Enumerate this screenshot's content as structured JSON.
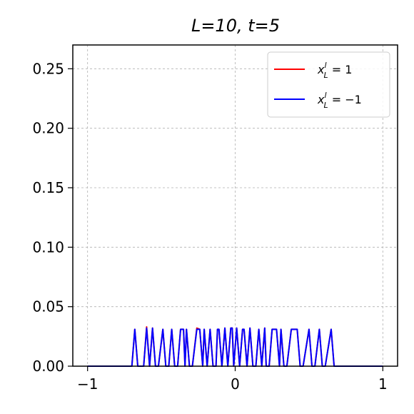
{
  "chart_data": {
    "type": "line",
    "title": "L=10, t=5",
    "xlabel": "",
    "ylabel": "",
    "xlim": [
      -1.1,
      1.1
    ],
    "ylim": [
      0,
      0.27
    ],
    "xticks": [
      -1,
      0,
      1
    ],
    "xtick_labels": [
      "−1",
      "0",
      "1"
    ],
    "yticks": [
      0.0,
      0.05,
      0.1,
      0.15,
      0.2,
      0.25
    ],
    "ytick_labels": [
      "0.00",
      "0.05",
      "0.10",
      "0.15",
      "0.20",
      "0.25"
    ],
    "grid": true,
    "legend_position": "top-right",
    "series": [
      {
        "name": "x_L^l = 1",
        "color": "#ff0000",
        "x": [
          -1.0,
          -0.7,
          -0.68,
          -0.66,
          -0.62,
          -0.6,
          -0.58,
          -0.56,
          -0.54,
          -0.52,
          -0.49,
          -0.47,
          -0.45,
          -0.43,
          -0.41,
          -0.39,
          -0.37,
          -0.35,
          -0.34,
          -0.33,
          -0.31,
          -0.29,
          -0.26,
          -0.24,
          -0.22,
          -0.21,
          -0.19,
          -0.17,
          -0.15,
          -0.13,
          -0.12,
          -0.11,
          -0.09,
          -0.07,
          -0.05,
          -0.03,
          -0.02,
          -0.01,
          0.01,
          0.03,
          0.05,
          0.06,
          0.08,
          0.1,
          0.12,
          0.14,
          0.16,
          0.18,
          0.2,
          0.21,
          0.23,
          0.25,
          0.28,
          0.3,
          0.31,
          0.33,
          0.35,
          0.38,
          0.42,
          0.44,
          0.46,
          0.5,
          0.52,
          0.54,
          0.57,
          0.59,
          0.61,
          0.65,
          0.67,
          0.69,
          1.0
        ],
        "y": [
          0,
          0,
          0.031,
          0,
          0,
          0.033,
          0,
          0.032,
          0,
          0,
          0.031,
          0,
          0,
          0.031,
          0,
          0,
          0.031,
          0.031,
          0,
          0.031,
          0,
          0,
          0.032,
          0.031,
          0,
          0.031,
          0,
          0.031,
          0,
          0,
          0.031,
          0.031,
          0,
          0.032,
          0,
          0.032,
          0.032,
          0,
          0.032,
          0,
          0.031,
          0.031,
          0,
          0.032,
          0,
          0,
          0.031,
          0,
          0.032,
          0,
          0,
          0.031,
          0.031,
          0,
          0.031,
          0,
          0,
          0.031,
          0.031,
          0,
          0,
          0.031,
          0,
          0,
          0.031,
          0,
          0,
          0.031,
          0,
          0,
          0
        ]
      },
      {
        "name": "x_L^l = −1",
        "color": "#0000ff",
        "x": [
          -1.0,
          -0.7,
          -0.68,
          -0.66,
          -0.62,
          -0.6,
          -0.58,
          -0.56,
          -0.54,
          -0.52,
          -0.49,
          -0.47,
          -0.45,
          -0.43,
          -0.41,
          -0.39,
          -0.37,
          -0.35,
          -0.34,
          -0.33,
          -0.31,
          -0.29,
          -0.26,
          -0.24,
          -0.22,
          -0.21,
          -0.19,
          -0.17,
          -0.15,
          -0.13,
          -0.12,
          -0.11,
          -0.09,
          -0.07,
          -0.05,
          -0.03,
          -0.02,
          -0.01,
          0.01,
          0.03,
          0.05,
          0.06,
          0.08,
          0.1,
          0.12,
          0.14,
          0.16,
          0.18,
          0.2,
          0.21,
          0.23,
          0.25,
          0.28,
          0.3,
          0.31,
          0.33,
          0.35,
          0.38,
          0.42,
          0.44,
          0.46,
          0.5,
          0.52,
          0.54,
          0.57,
          0.59,
          0.61,
          0.65,
          0.67,
          0.69,
          1.0
        ],
        "y": [
          0,
          0,
          0.031,
          0,
          0,
          0.032,
          0,
          0.032,
          0,
          0,
          0.031,
          0,
          0,
          0.031,
          0,
          0,
          0.031,
          0.031,
          0,
          0.031,
          0,
          0,
          0.031,
          0.031,
          0,
          0.031,
          0,
          0.031,
          0,
          0,
          0.031,
          0.031,
          0,
          0.032,
          0,
          0.032,
          0.032,
          0,
          0.032,
          0,
          0.031,
          0.031,
          0,
          0.032,
          0,
          0,
          0.031,
          0,
          0.032,
          0,
          0,
          0.031,
          0.031,
          0,
          0.031,
          0,
          0,
          0.031,
          0.031,
          0,
          0,
          0.031,
          0,
          0,
          0.031,
          0,
          0,
          0.031,
          0,
          0,
          0
        ]
      }
    ]
  }
}
